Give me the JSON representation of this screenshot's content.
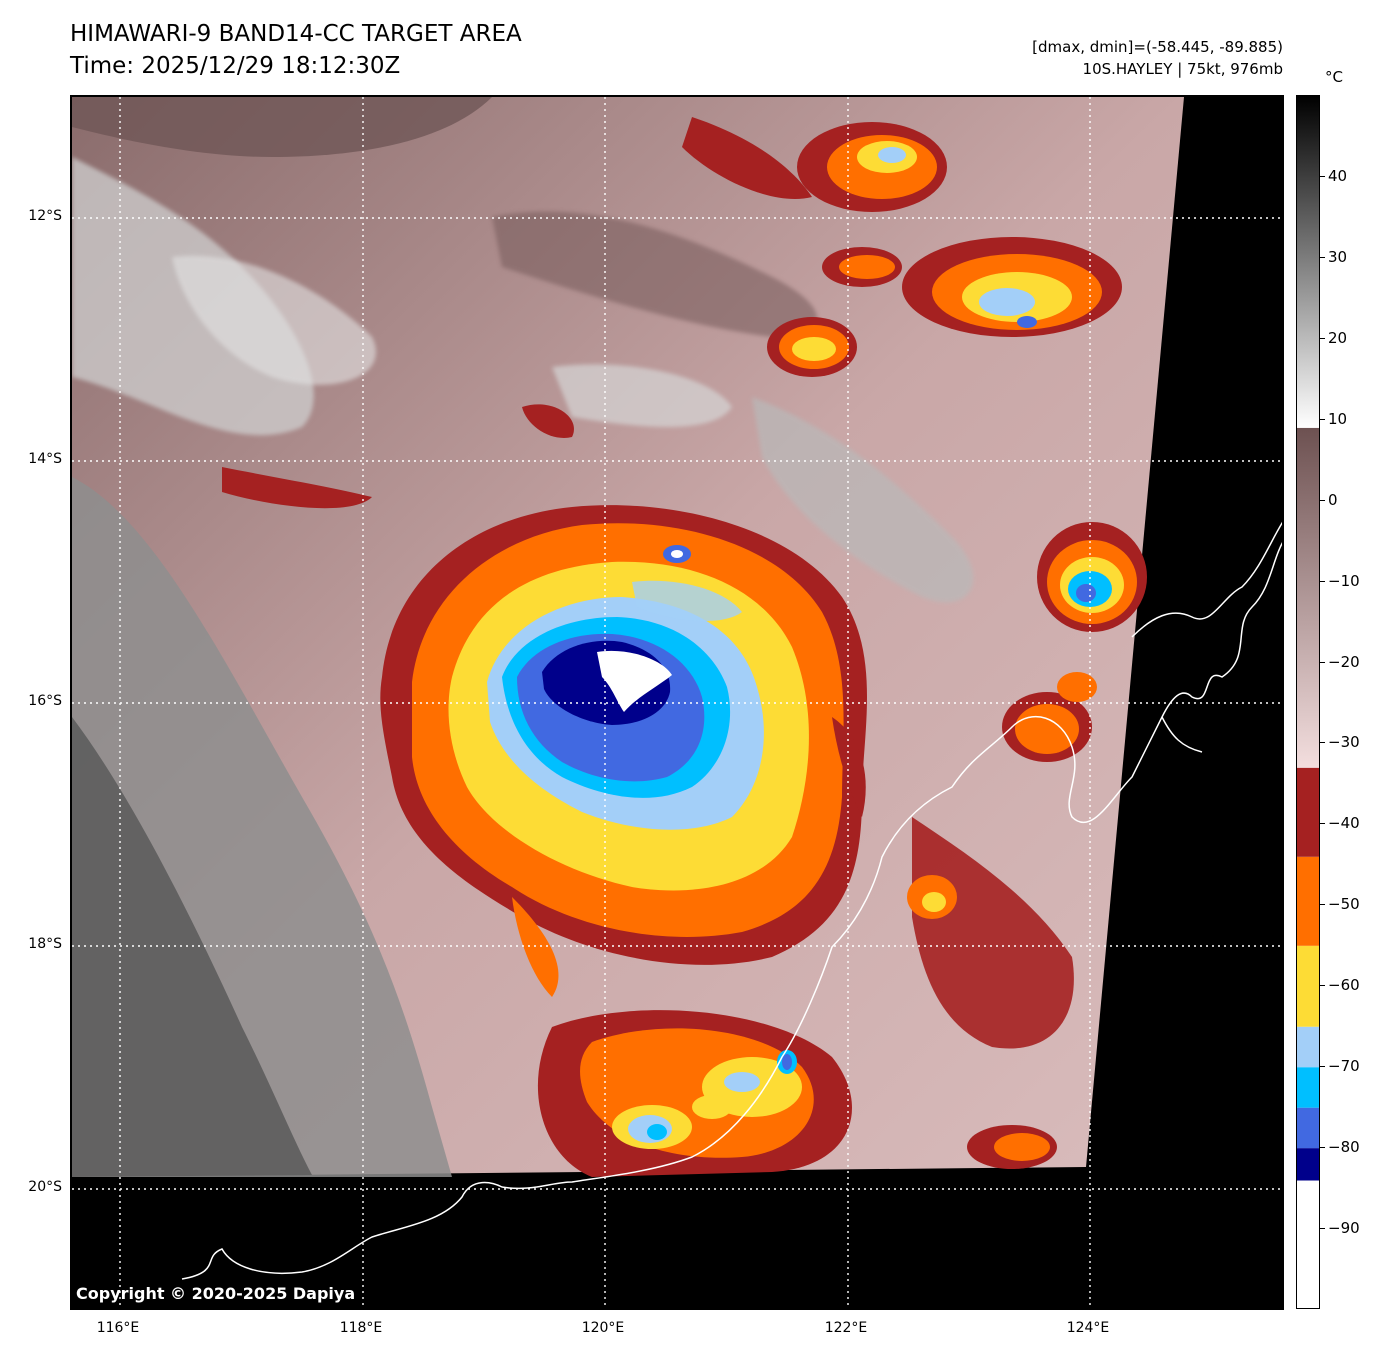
{
  "header": {
    "title_line1": "HIMAWARI-9 BAND14-CC TARGET AREA",
    "title_line2": "Time: 2025/12/29 18:12:30Z",
    "range_text": "[dmax, dmin]=(-58.445, -89.885)",
    "storm_text": "10S.HAYLEY | 75kt, 976mb"
  },
  "map": {
    "lat_labels": [
      "12°S",
      "14°S",
      "16°S",
      "18°S",
      "20°S"
    ],
    "lon_labels": [
      "116°E",
      "118°E",
      "120°E",
      "122°E",
      "124°E"
    ],
    "copyright": "Copyright © 2020-2025 Dapiya",
    "storm_center": {
      "lat": -16.0,
      "lon": 120.3
    }
  },
  "colorbar": {
    "unit": "°C",
    "range": [
      -100,
      50
    ],
    "tick_values": [
      40,
      30,
      20,
      10,
      0,
      -10,
      -20,
      -30,
      -40,
      -50,
      -60,
      -70,
      -80,
      -90
    ],
    "tick_labels": [
      "40",
      "30",
      "20",
      "10",
      "0",
      "−10",
      "−20",
      "−30",
      "−40",
      "−50",
      "−60",
      "−70",
      "−80",
      "−90"
    ],
    "bands": [
      {
        "from": -100,
        "to": -84,
        "color": "#ffffff"
      },
      {
        "from": -84,
        "to": -80,
        "color": "#00008b"
      },
      {
        "from": -80,
        "to": -75,
        "color": "#4169e1"
      },
      {
        "from": -75,
        "to": -70,
        "color": "#00bfff"
      },
      {
        "from": -70,
        "to": -65,
        "color": "#a3cff8"
      },
      {
        "from": -65,
        "to": -55,
        "color": "#fddc35"
      },
      {
        "from": -55,
        "to": -44,
        "color": "#ff6f00"
      },
      {
        "from": -44,
        "to": -33,
        "color": "#a52121"
      }
    ],
    "gradient_stops": [
      {
        "value": -33,
        "color": "#f3dede"
      },
      {
        "value": 9,
        "color": "#6d5151"
      },
      {
        "value": 9,
        "color": "#ffffff"
      },
      {
        "value": 50,
        "color": "#000000"
      }
    ]
  }
}
